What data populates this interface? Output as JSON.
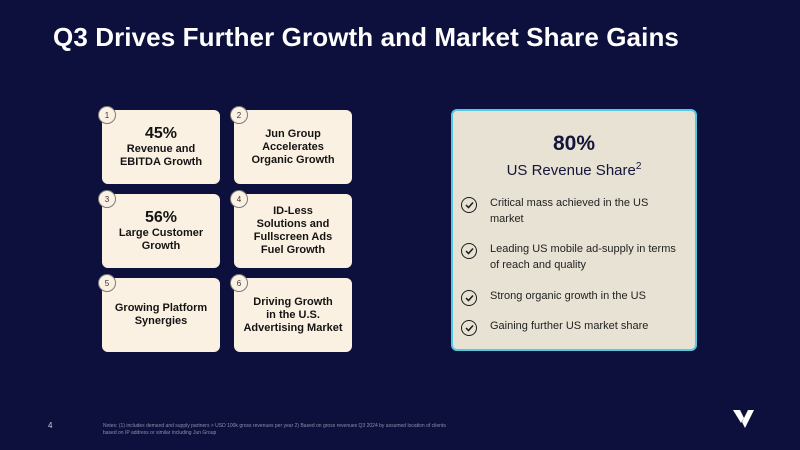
{
  "title": "Q3 Drives Further Growth and Market Share Gains",
  "cards": [
    {
      "num": "1",
      "big": "45%",
      "lines": [
        "Revenue and",
        "EBITDA Growth"
      ]
    },
    {
      "num": "2",
      "big": "",
      "lines": [
        "Jun Group",
        "Accelerates",
        "Organic Growth"
      ]
    },
    {
      "num": "3",
      "big": "56%",
      "lines": [
        "Large Customer",
        "Growth"
      ]
    },
    {
      "num": "4",
      "big": "",
      "lines": [
        "ID-Less",
        "Solutions and",
        "Fullscreen Ads",
        "Fuel Growth"
      ]
    },
    {
      "num": "5",
      "big": "",
      "lines": [
        "Growing Platform",
        "Synergies"
      ]
    },
    {
      "num": "6",
      "big": "",
      "lines": [
        "Driving Growth",
        "in the U.S.",
        "Advertising Market"
      ]
    }
  ],
  "panel": {
    "pct": "80%",
    "subtitle": "US Revenue Share",
    "footnote": "2",
    "items": [
      [
        "Critical mass achieved in the US",
        "market"
      ],
      [
        "Leading US mobile ad-supply in terms",
        "of reach and quality"
      ],
      [
        "Strong organic growth in the US"
      ],
      [
        "Gaining further US market share"
      ]
    ]
  },
  "page_number": "4",
  "notes": [
    "Notes: (1) includes demand and supply partners > USD 100k gross revenues per year 2) Based on gross revenues Q3 2024 by assumed location of clients",
    "based on IP address or similar including Jun Group"
  ],
  "colors": {
    "background": "#0d0f3c",
    "card": "#fbf1e3",
    "panel": "#e7e2d3",
    "panel_border": "#53c9e3"
  }
}
